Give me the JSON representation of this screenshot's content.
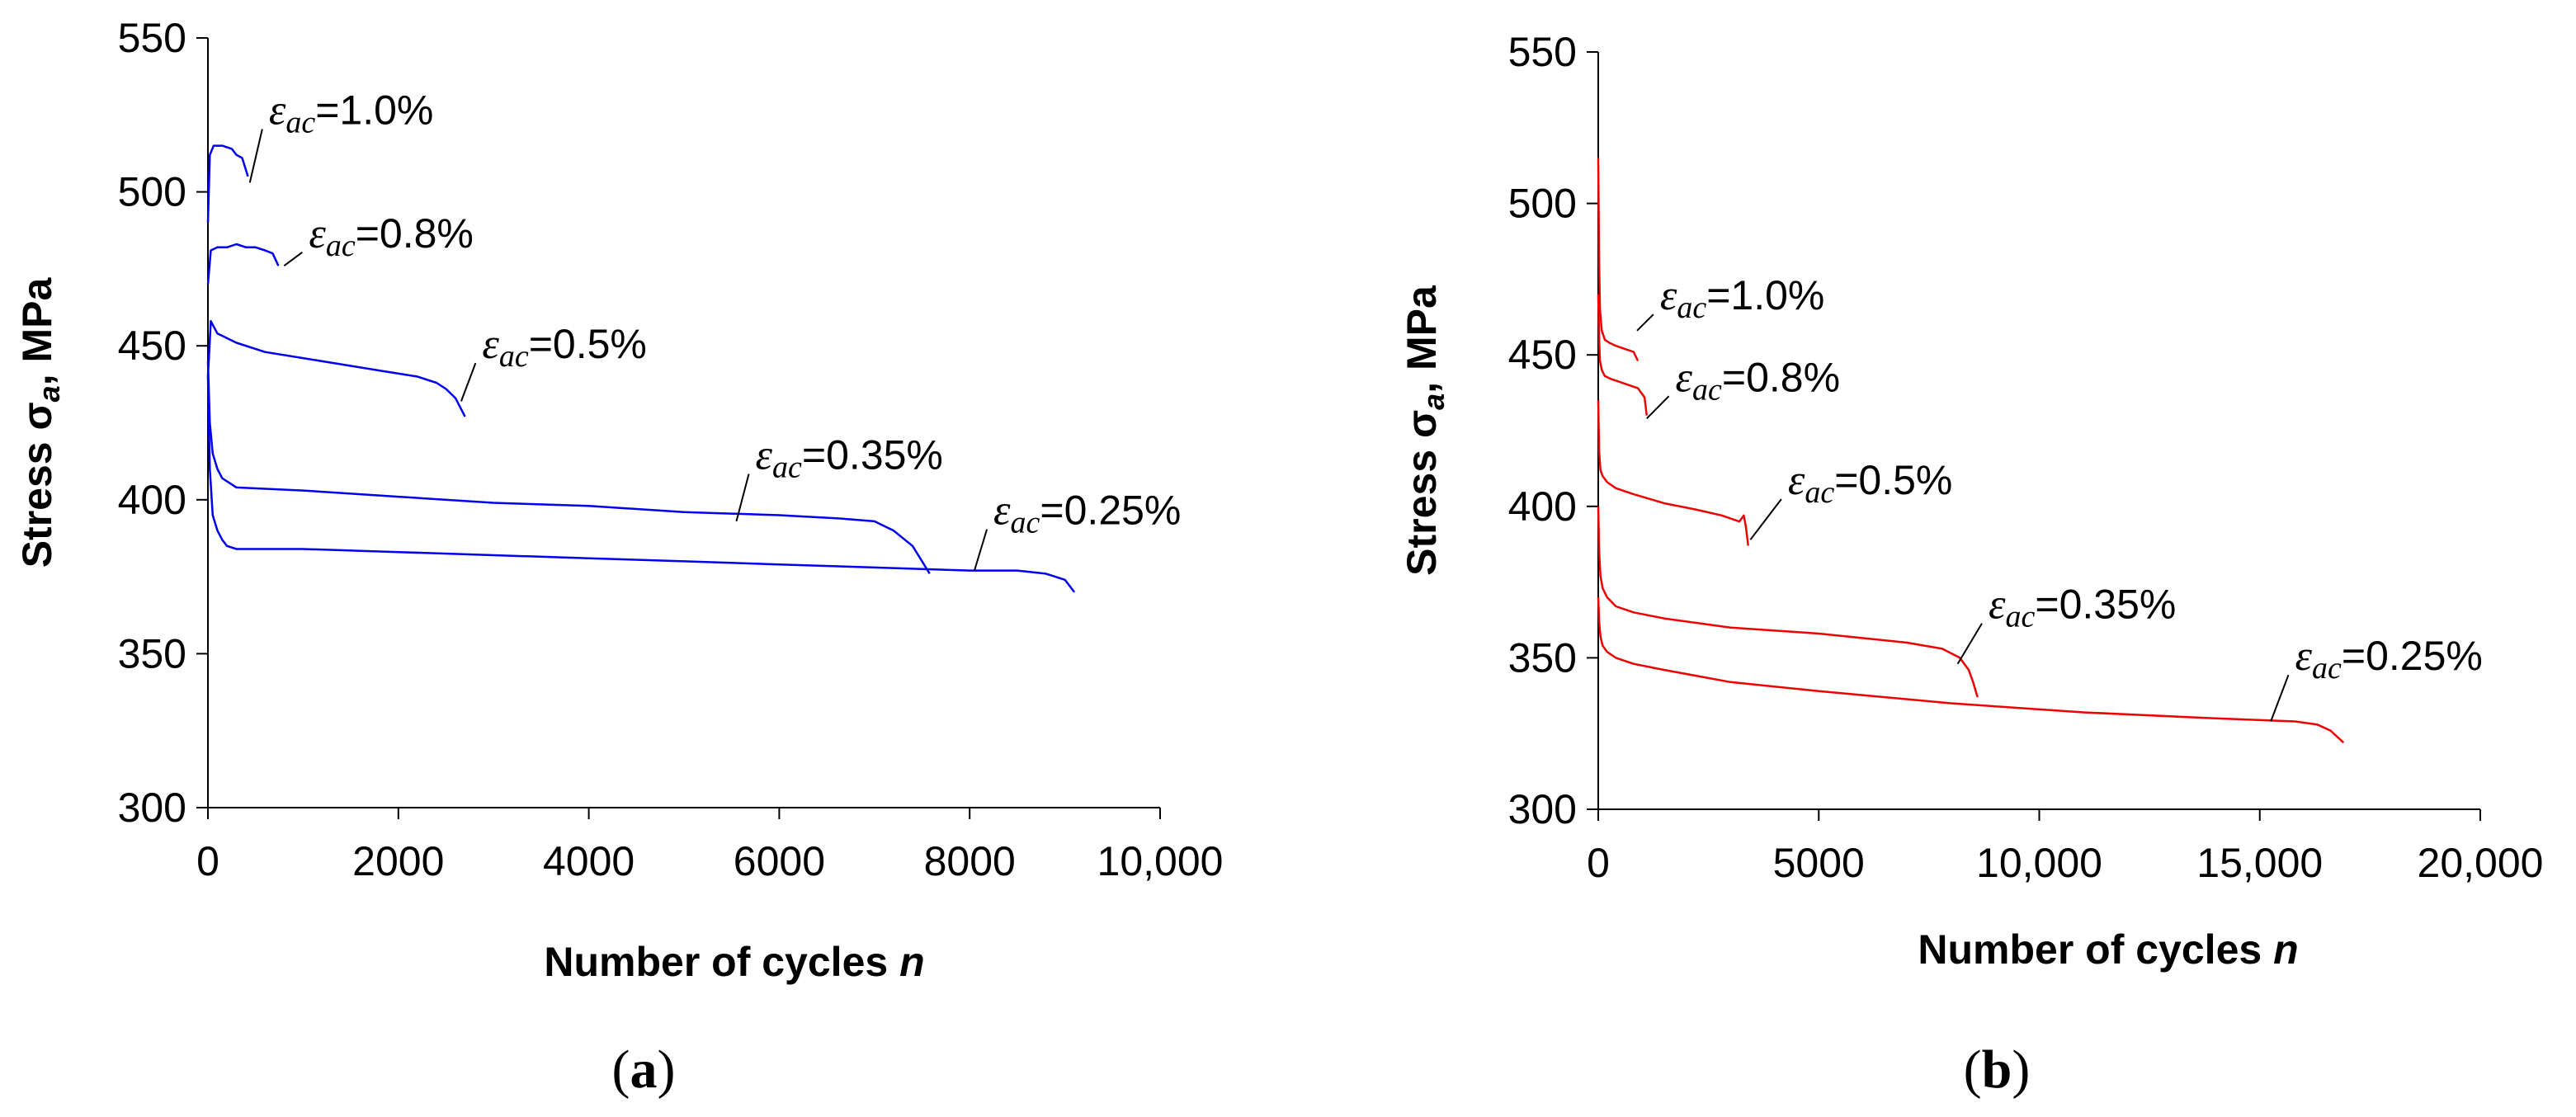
{
  "chart_data": [
    {
      "type": "line",
      "panel_label": "(a)",
      "panel_letter": "a",
      "xlabel": "Number of cycles ",
      "xlabel_var": "n",
      "ylabel": "Stress σ",
      "ylabel_sub": "a",
      "ylabel_tail": ", MPa",
      "xlim": [
        0,
        10000
      ],
      "ylim": [
        300,
        550
      ],
      "xticks": [
        0,
        2000,
        4000,
        6000,
        8000,
        10000
      ],
      "xtick_labels": [
        "0",
        "2000",
        "4000",
        "6000",
        "8000",
        "10,000"
      ],
      "yticks": [
        300,
        350,
        400,
        450,
        500,
        550
      ],
      "ytick_labels": [
        "300",
        "350",
        "400",
        "450",
        "500",
        "550"
      ],
      "line_color": "#0000ee",
      "series": [
        {
          "label": "ε",
          "sub": "ac",
          "value": "=1.0%",
          "x": [
            0,
            20,
            60,
            150,
            250,
            300,
            360,
            420
          ],
          "y": [
            490,
            512,
            515,
            515,
            514,
            512,
            511,
            505
          ],
          "annot_x": 440,
          "annot_y": 503,
          "text_x": 640,
          "text_y": 522
        },
        {
          "label": "ε",
          "sub": "ac",
          "value": "=0.8%",
          "x": [
            0,
            30,
            100,
            200,
            300,
            400,
            500,
            600,
            680,
            740
          ],
          "y": [
            470,
            481,
            482,
            482,
            483,
            482,
            482,
            481,
            480,
            476
          ],
          "annot_x": 800,
          "annot_y": 476,
          "text_x": 1060,
          "text_y": 482
        },
        {
          "label": "ε",
          "sub": "ac",
          "value": "=0.5%",
          "x": [
            0,
            30,
            100,
            300,
            600,
            1000,
            1400,
            1800,
            2200,
            2400,
            2500,
            2600,
            2650,
            2700
          ],
          "y": [
            440,
            458,
            454,
            451,
            448,
            446,
            444,
            442,
            440,
            438,
            436,
            433,
            430,
            427
          ],
          "annot_x": 2660,
          "annot_y": 432,
          "text_x": 2880,
          "text_y": 446
        },
        {
          "label": "ε",
          "sub": "ac",
          "value": "=0.35%",
          "x": [
            0,
            20,
            50,
            100,
            150,
            200,
            300,
            1000,
            2000,
            3000,
            4000,
            5000,
            6000,
            6600,
            7000,
            7200,
            7400,
            7500,
            7580
          ],
          "y": [
            445,
            425,
            415,
            410,
            407,
            406,
            404,
            403,
            401,
            399,
            398,
            396,
            395,
            394,
            393,
            390,
            385,
            380,
            376
          ],
          "annot_x": 5550,
          "annot_y": 393,
          "text_x": 5750,
          "text_y": 410
        },
        {
          "label": "ε",
          "sub": "ac",
          "value": "=0.25%",
          "x": [
            0,
            20,
            50,
            100,
            150,
            200,
            300,
            500,
            1000,
            2000,
            3000,
            4000,
            5000,
            6000,
            7000,
            8000,
            8500,
            8800,
            9000,
            9100
          ],
          "y": [
            440,
            410,
            395,
            390,
            387,
            385,
            384,
            384,
            384,
            383,
            382,
            381,
            380,
            379,
            378,
            377,
            377,
            376,
            374,
            370
          ],
          "annot_x": 8050,
          "annot_y": 377,
          "text_x": 8250,
          "text_y": 392
        }
      ]
    },
    {
      "type": "line",
      "panel_label": "(b)",
      "panel_letter": "b",
      "xlabel": "Number of cycles ",
      "xlabel_var": "n",
      "ylabel": "Stress σ",
      "ylabel_sub": "a",
      "ylabel_tail": ", MPa",
      "xlim": [
        0,
        20000
      ],
      "ylim": [
        300,
        550
      ],
      "xticks": [
        0,
        5000,
        10000,
        15000,
        20000
      ],
      "xtick_labels": [
        "0",
        "5000",
        "10,000",
        "15,000",
        "20,000"
      ],
      "yticks": [
        300,
        350,
        400,
        450,
        500,
        550
      ],
      "ytick_labels": [
        "300",
        "350",
        "400",
        "450",
        "500",
        "550"
      ],
      "line_color": "#ee0000",
      "series": [
        {
          "label": "ε",
          "sub": "ac",
          "value": "=1.0%",
          "x": [
            0,
            20,
            40,
            80,
            150,
            250,
            400,
            600,
            800,
            900
          ],
          "y": [
            515,
            480,
            465,
            458,
            455,
            454,
            453,
            452,
            451,
            448
          ],
          "annot_x": 880,
          "annot_y": 458,
          "text_x": 1400,
          "text_y": 465
        },
        {
          "label": "ε",
          "sub": "ac",
          "value": "=0.8%",
          "x": [
            0,
            20,
            40,
            80,
            150,
            300,
            500,
            700,
            900,
            1050,
            1100
          ],
          "y": [
            470,
            455,
            448,
            445,
            443,
            442,
            441,
            440,
            439,
            436,
            430
          ],
          "annot_x": 1100,
          "annot_y": 429,
          "text_x": 1750,
          "text_y": 438
        },
        {
          "label": "ε",
          "sub": "ac",
          "value": "=0.5%",
          "x": [
            0,
            20,
            50,
            100,
            200,
            400,
            800,
            1500,
            2200,
            2800,
            3200,
            3300,
            3350,
            3400
          ],
          "y": [
            435,
            418,
            412,
            410,
            408,
            406,
            404,
            401,
            399,
            397,
            395,
            397,
            393,
            387
          ],
          "annot_x": 3450,
          "annot_y": 389,
          "text_x": 4300,
          "text_y": 404
        },
        {
          "label": "ε",
          "sub": "ac",
          "value": "=0.35%",
          "x": [
            0,
            20,
            50,
            100,
            200,
            400,
            800,
            1500,
            3000,
            5000,
            7000,
            7800,
            8200,
            8400,
            8500,
            8600
          ],
          "y": [
            400,
            385,
            377,
            373,
            370,
            367,
            365,
            363,
            360,
            358,
            355,
            353,
            350,
            346,
            342,
            337
          ],
          "annot_x": 8150,
          "annot_y": 348,
          "text_x": 8850,
          "text_y": 363
        },
        {
          "label": "ε",
          "sub": "ac",
          "value": "=0.25%",
          "x": [
            0,
            20,
            50,
            100,
            200,
            400,
            800,
            1500,
            3000,
            5000,
            8000,
            11000,
            14000,
            15800,
            16300,
            16600,
            16900
          ],
          "y": [
            370,
            362,
            357,
            354,
            352,
            350,
            348,
            346,
            342,
            339,
            335,
            332,
            330,
            329,
            328,
            326,
            322
          ],
          "annot_x": 15250,
          "annot_y": 329,
          "text_x": 15800,
          "text_y": 346
        }
      ]
    }
  ]
}
